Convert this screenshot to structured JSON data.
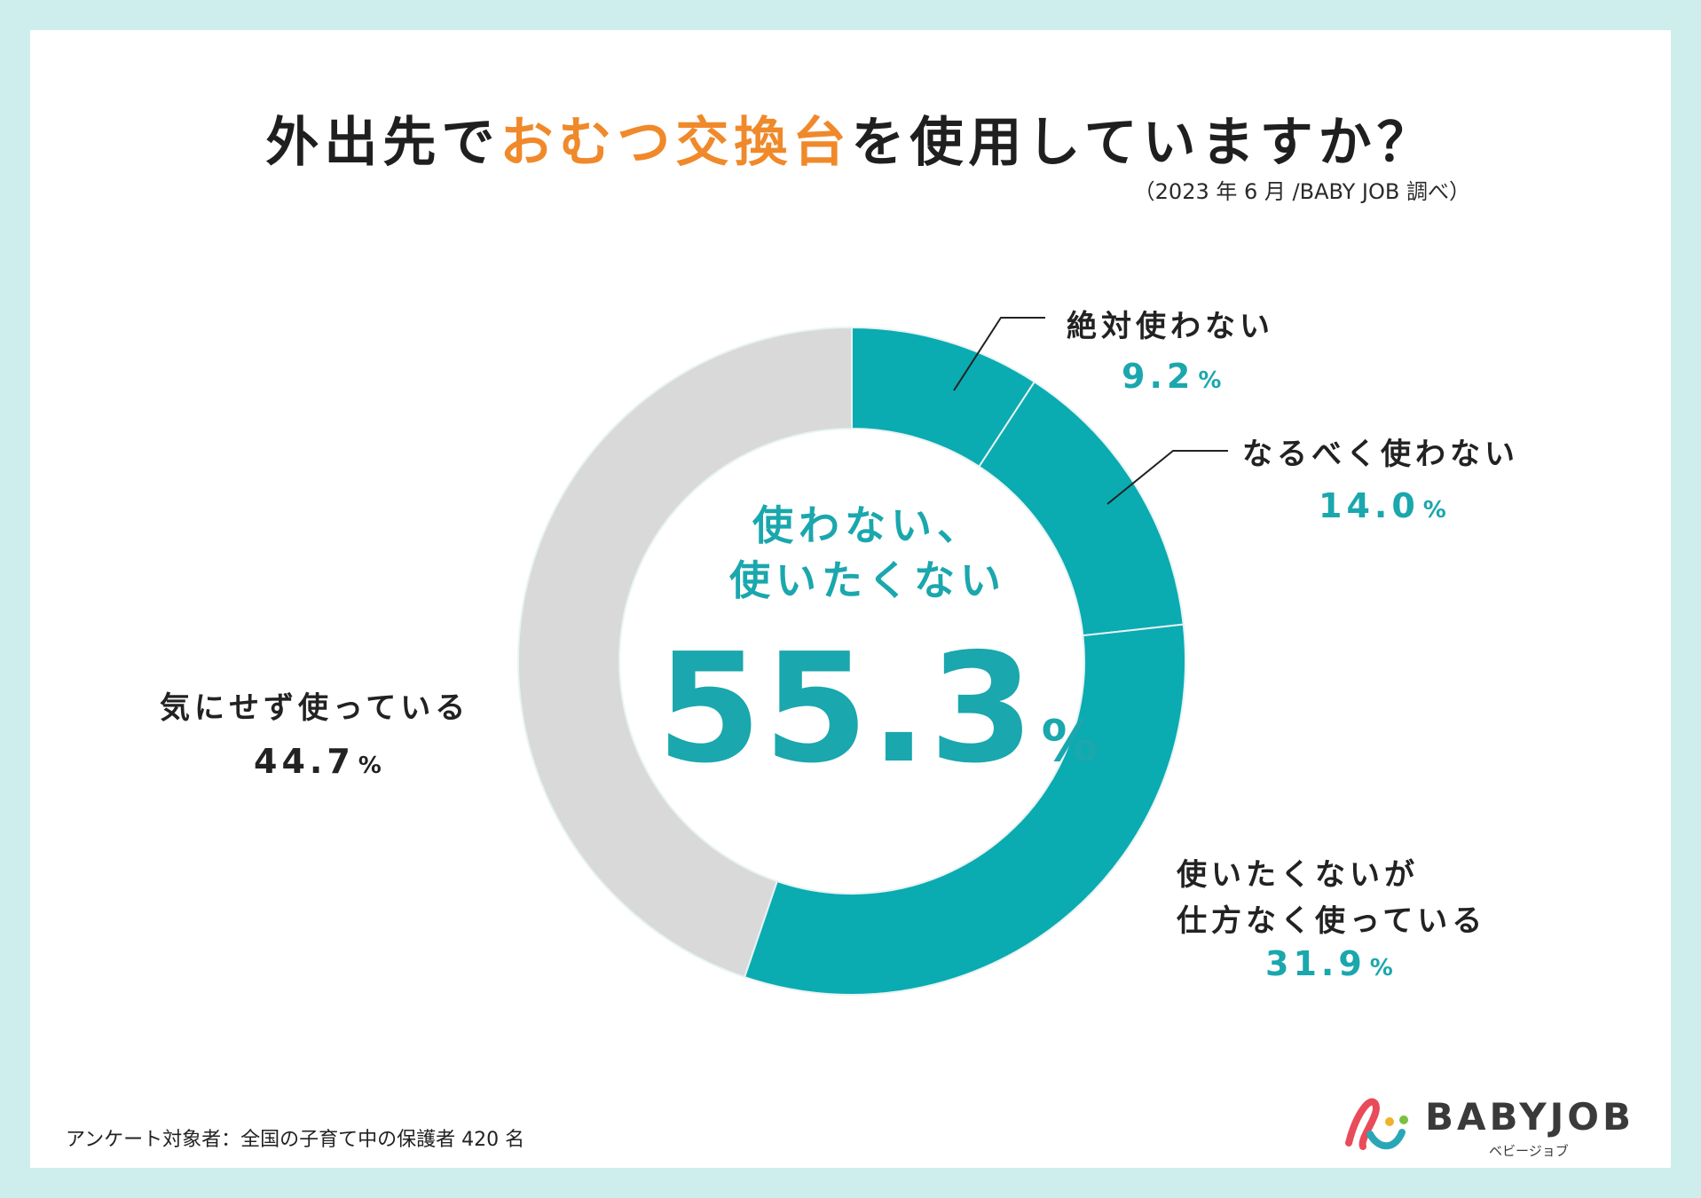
{
  "title": {
    "part1": "外出先で",
    "highlight": "おむつ交換台",
    "part2": "を使用していますか？"
  },
  "source": "（2023 年 6 月 /BABY JOB 調べ）",
  "center": {
    "line1": "使わない、",
    "line2": "使いたくない",
    "value": "55.3",
    "unit": "%"
  },
  "chart_data": {
    "type": "pie",
    "donut": true,
    "categories": [
      "絶対使わない",
      "なるべく使わない",
      "使いたくないが仕方なく使っている",
      "気にせず使っている"
    ],
    "values": [
      9.2,
      14.0,
      31.9,
      44.7
    ],
    "unit": "%",
    "start": "top",
    "direction": "clockwise",
    "colors": [
      "#0aabb1",
      "#0aabb1",
      "#0aabb1",
      "#d9d9d9"
    ],
    "separator_color": "#e8f3f3"
  },
  "labels": [
    {
      "name": "絶対使わない",
      "value": "9.2",
      "unit": "%"
    },
    {
      "name": "なるべく使わない",
      "value": "14.0",
      "unit": "%"
    },
    {
      "name_line1": "使いたくないが",
      "name_line2": "仕方なく使っている",
      "value": "31.9",
      "unit": "%"
    },
    {
      "name": "気にせず使っている",
      "value": "44.7",
      "unit": "%"
    }
  ],
  "footnote": "アンケート対象者：全国の子育て中の保護者 420 名",
  "logo": {
    "text": "BABYJOB",
    "sub": "ベビージョブ"
  },
  "colors": {
    "accent": "#f0892a",
    "teal": "#1aa7ad",
    "background": "#cdeeed"
  }
}
